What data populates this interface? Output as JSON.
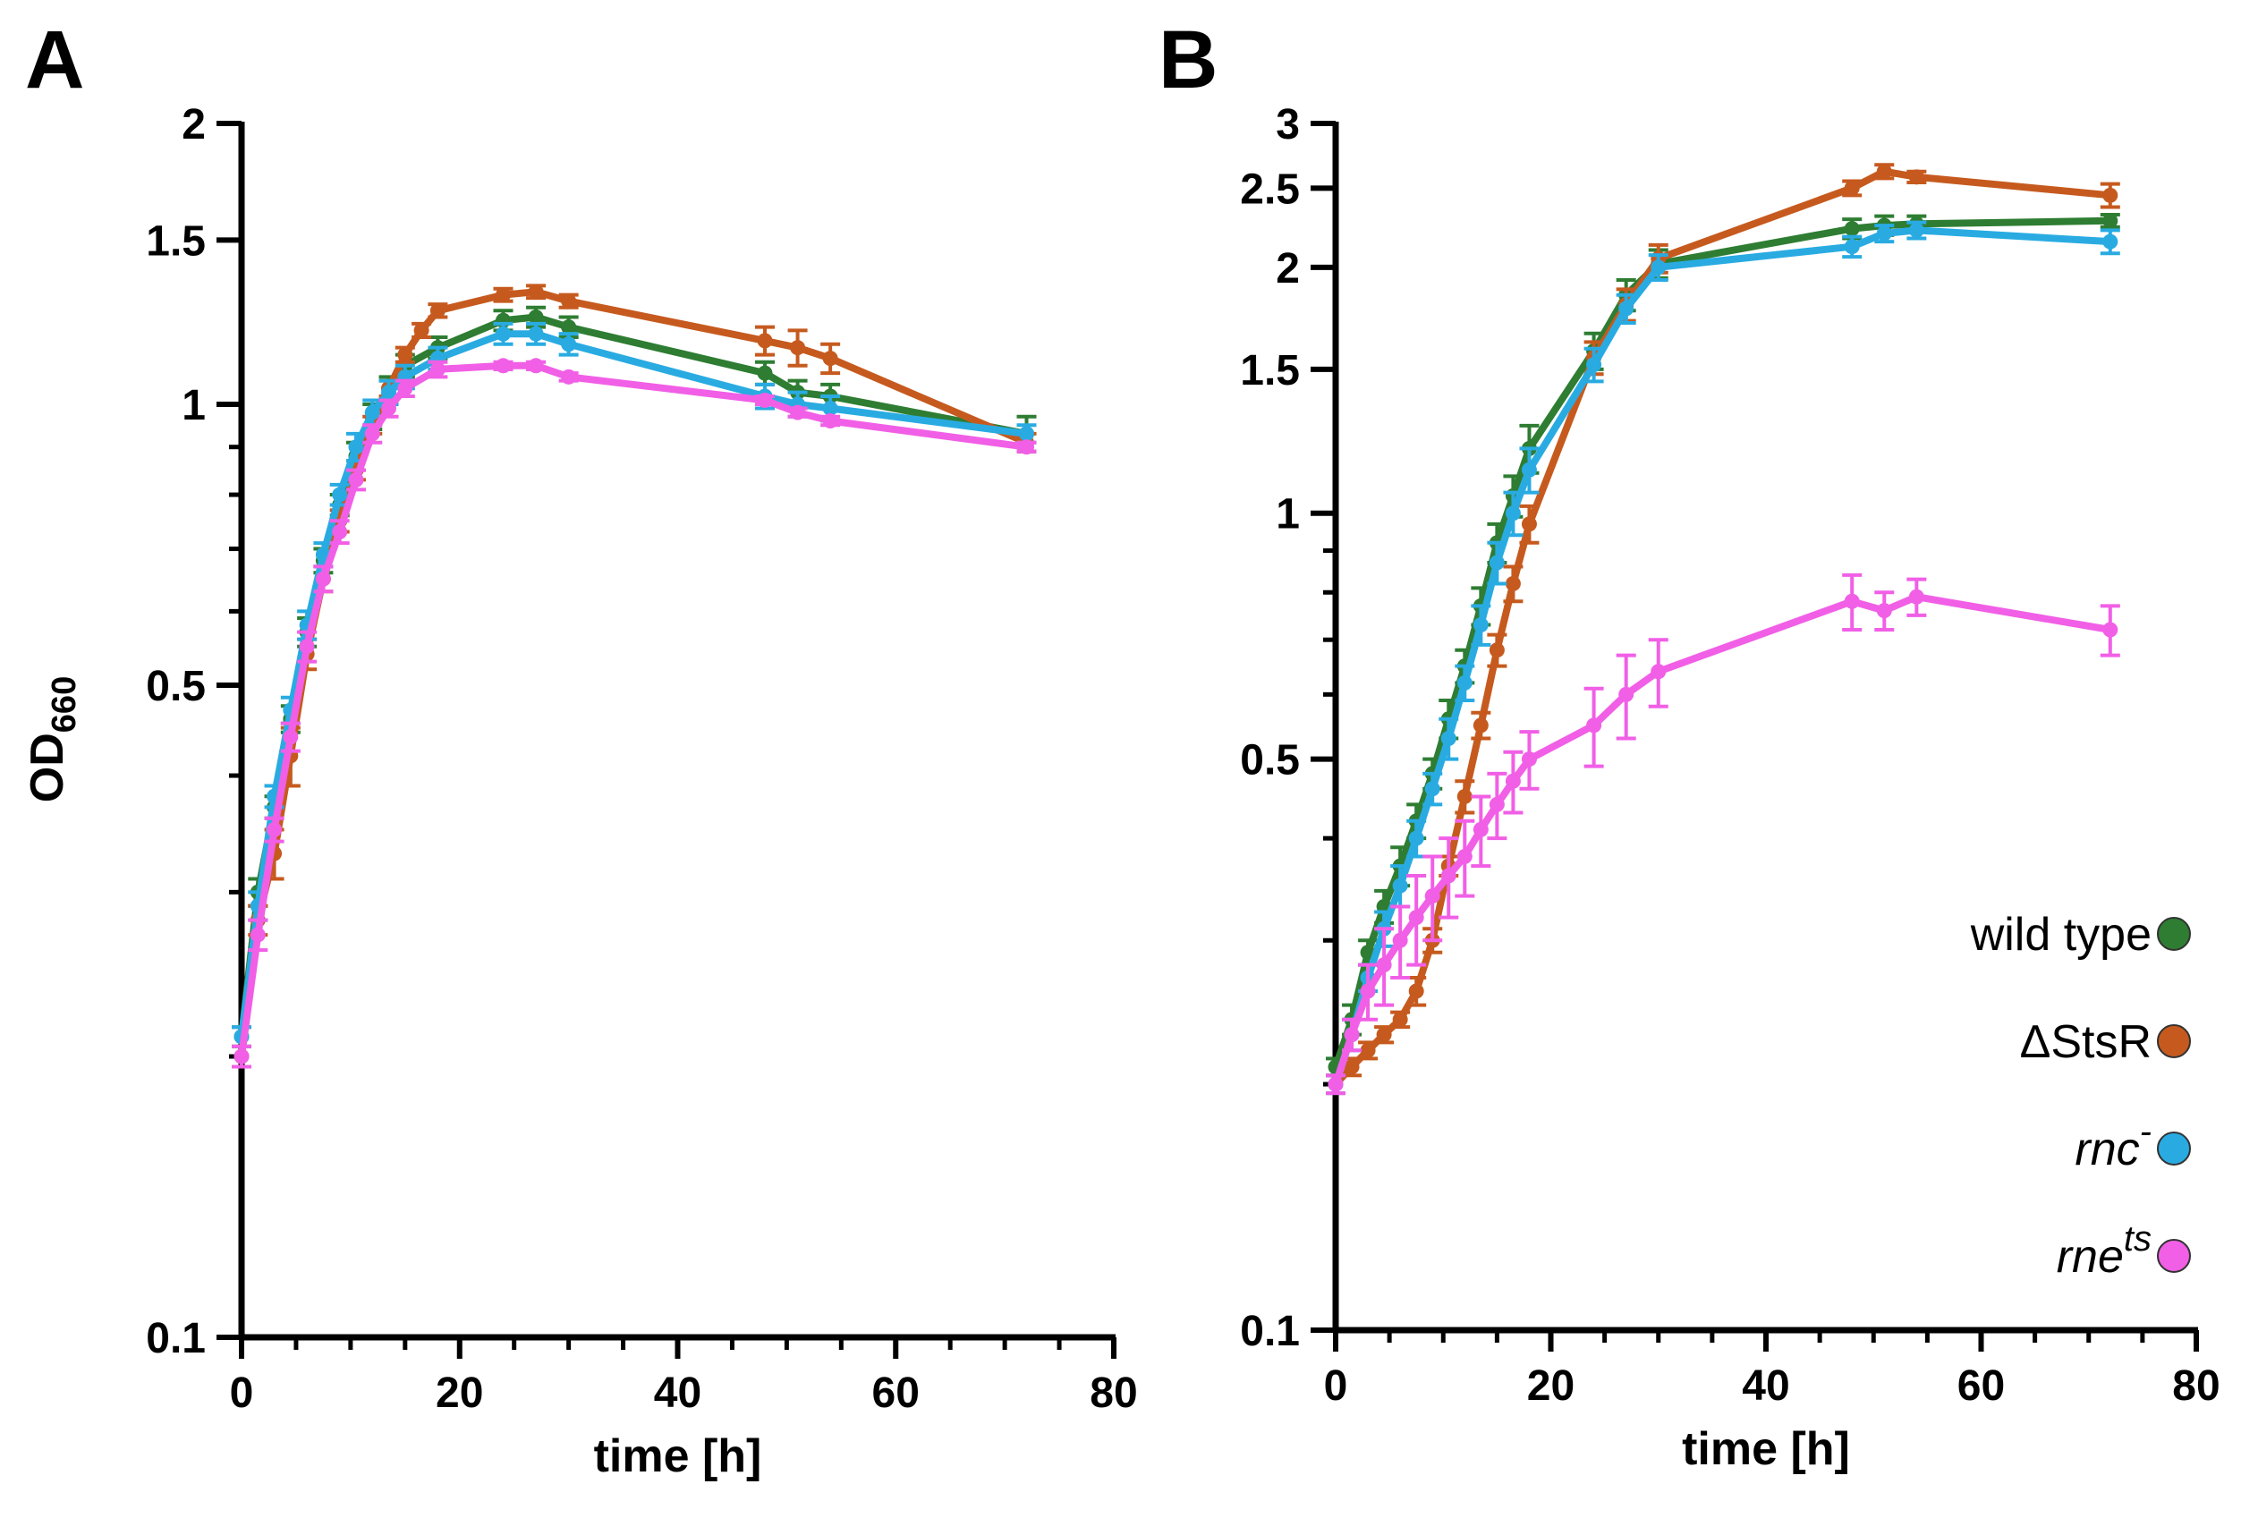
{
  "figure": {
    "panels": [
      "A",
      "B"
    ]
  },
  "chart_data": [
    {
      "panel": "A",
      "type": "line",
      "yscale": "log",
      "title": "",
      "xlabel": "time [h]",
      "ylabel": "OD",
      "ylabel_sub": "660",
      "xlim": [
        0,
        80
      ],
      "ylim": [
        0.1,
        2
      ],
      "xticks": [
        0,
        20,
        40,
        60,
        80
      ],
      "xtick_labels": [
        "0",
        "20",
        "40",
        "60",
        "80"
      ],
      "yticks": [
        0.1,
        0.5,
        1,
        1.5,
        2
      ],
      "ytick_labels": [
        "0.1",
        "0.5",
        "1",
        "1.5",
        "2"
      ],
      "series": [
        {
          "name": "wild type",
          "color": "#2e7d32",
          "x": [
            0,
            1.5,
            3,
            4.5,
            6,
            7.5,
            9,
            10.5,
            12,
            13.5,
            15,
            18,
            24,
            27,
            30,
            48,
            51,
            54,
            72
          ],
          "y": [
            0.21,
            0.3,
            0.37,
            0.46,
            0.57,
            0.68,
            0.78,
            0.88,
            0.97,
            1.04,
            1.1,
            1.15,
            1.23,
            1.24,
            1.21,
            1.08,
            1.03,
            1.02,
            0.93
          ],
          "err": [
            0.005,
            0.01,
            0.01,
            0.015,
            0.02,
            0.02,
            0.02,
            0.03,
            0.03,
            0.03,
            0.03,
            0.03,
            0.03,
            0.03,
            0.03,
            0.03,
            0.03,
            0.03,
            0.04
          ]
        },
        {
          "name": "ΔStsR",
          "color": "#c65a1e",
          "x": [
            0,
            1.5,
            3,
            4.5,
            6,
            7.5,
            9,
            10.5,
            12,
            13.5,
            15,
            16.5,
            18,
            24,
            27,
            30,
            48,
            51,
            54,
            72
          ],
          "y": [
            0.2,
            0.28,
            0.33,
            0.42,
            0.54,
            0.65,
            0.75,
            0.85,
            0.95,
            1.04,
            1.13,
            1.2,
            1.26,
            1.31,
            1.32,
            1.29,
            1.17,
            1.15,
            1.12,
            0.91
          ],
          "err": [
            0.005,
            0.01,
            0.02,
            0.03,
            0.02,
            0.02,
            0.02,
            0.02,
            0.02,
            0.02,
            0.02,
            0.02,
            0.02,
            0.02,
            0.02,
            0.02,
            0.04,
            0.05,
            0.04,
            0.02
          ]
        },
        {
          "name": "rnc-",
          "color": "#29abe2",
          "x": [
            0,
            1.5,
            3,
            4.5,
            6,
            7.5,
            9,
            10.5,
            12,
            13.5,
            15,
            18,
            24,
            27,
            30,
            48,
            51,
            54,
            72
          ],
          "y": [
            0.21,
            0.29,
            0.38,
            0.47,
            0.58,
            0.69,
            0.8,
            0.9,
            0.98,
            1.03,
            1.07,
            1.12,
            1.19,
            1.19,
            1.16,
            1.02,
            1.0,
            0.99,
            0.93
          ],
          "err": [
            0.005,
            0.01,
            0.01,
            0.015,
            0.02,
            0.02,
            0.02,
            0.03,
            0.03,
            0.03,
            0.03,
            0.03,
            0.03,
            0.03,
            0.03,
            0.03,
            0.03,
            0.03,
            0.02
          ]
        },
        {
          "name": "rne-ts",
          "color": "#f15fe6",
          "x": [
            0,
            1.5,
            3,
            4.5,
            6,
            7.5,
            9,
            10.5,
            12,
            13.5,
            15,
            18,
            24,
            27,
            30,
            48,
            51,
            54,
            72
          ],
          "y": [
            0.2,
            0.27,
            0.35,
            0.44,
            0.55,
            0.65,
            0.73,
            0.83,
            0.93,
            0.99,
            1.04,
            1.09,
            1.1,
            1.1,
            1.07,
            1.01,
            0.98,
            0.96,
            0.9
          ],
          "err": [
            0.005,
            0.01,
            0.01,
            0.015,
            0.02,
            0.02,
            0.02,
            0.02,
            0.02,
            0.02,
            0.02,
            0.02,
            0.01,
            0.01,
            0.01,
            0.01,
            0.01,
            0.01,
            0.01
          ]
        }
      ]
    },
    {
      "panel": "B",
      "type": "line",
      "yscale": "log",
      "title": "",
      "xlabel": "time [h]",
      "ylabel": "",
      "xlim": [
        0,
        80
      ],
      "ylim": [
        0.1,
        3
      ],
      "xticks": [
        0,
        20,
        40,
        60,
        80
      ],
      "xtick_labels": [
        "0",
        "20",
        "40",
        "60",
        "80"
      ],
      "yticks": [
        0.1,
        0.5,
        1,
        1.5,
        2,
        2.5,
        3
      ],
      "ytick_labels": [
        "0.1",
        "0.5",
        "1",
        "1.5",
        "2",
        "2.5",
        "3"
      ],
      "legend_position": "bottom-right",
      "series": [
        {
          "name": "wild type",
          "color": "#2e7d32",
          "x": [
            0,
            1.5,
            3,
            4.5,
            6,
            7.5,
            9,
            10.5,
            12,
            13.5,
            15,
            16.5,
            18,
            24,
            27,
            30,
            48,
            51,
            54,
            72
          ],
          "y": [
            0.21,
            0.24,
            0.29,
            0.33,
            0.37,
            0.42,
            0.48,
            0.56,
            0.65,
            0.77,
            0.92,
            1.05,
            1.2,
            1.58,
            1.85,
            2.02,
            2.23,
            2.25,
            2.26,
            2.28
          ],
          "err": [
            0.005,
            0.01,
            0.01,
            0.015,
            0.02,
            0.02,
            0.02,
            0.03,
            0.03,
            0.04,
            0.05,
            0.06,
            0.08,
            0.08,
            0.08,
            0.08,
            0.06,
            0.06,
            0.05,
            0.04
          ]
        },
        {
          "name": "ΔStsR",
          "color": "#c65a1e",
          "x": [
            0,
            1.5,
            3,
            4.5,
            6,
            7.5,
            9,
            10.5,
            12,
            13.5,
            15,
            16.5,
            18,
            24,
            27,
            30,
            48,
            51,
            54,
            72
          ],
          "y": [
            0.2,
            0.21,
            0.22,
            0.23,
            0.24,
            0.26,
            0.3,
            0.37,
            0.45,
            0.55,
            0.68,
            0.82,
            0.97,
            1.55,
            1.8,
            2.05,
            2.5,
            2.62,
            2.58,
            2.45
          ],
          "err": [
            0.005,
            0.005,
            0.005,
            0.005,
            0.005,
            0.01,
            0.01,
            0.01,
            0.02,
            0.02,
            0.03,
            0.04,
            0.05,
            0.07,
            0.08,
            0.08,
            0.05,
            0.05,
            0.04,
            0.08
          ]
        },
        {
          "name": "rnc-",
          "color": "#29abe2",
          "x": [
            0,
            1.5,
            3,
            4.5,
            6,
            7.5,
            9,
            10.5,
            12,
            13.5,
            15,
            16.5,
            18,
            24,
            27,
            30,
            48,
            51,
            54,
            72
          ],
          "y": [
            0.2,
            0.23,
            0.27,
            0.31,
            0.35,
            0.4,
            0.46,
            0.53,
            0.62,
            0.73,
            0.87,
            1.0,
            1.13,
            1.52,
            1.78,
            2.0,
            2.12,
            2.2,
            2.22,
            2.15
          ],
          "err": [
            0.005,
            0.01,
            0.01,
            0.015,
            0.02,
            0.02,
            0.02,
            0.03,
            0.03,
            0.04,
            0.05,
            0.06,
            0.07,
            0.07,
            0.07,
            0.07,
            0.06,
            0.05,
            0.05,
            0.07
          ]
        },
        {
          "name": "rne-ts",
          "color": "#f15fe6",
          "x": [
            0,
            1.5,
            3,
            4.5,
            6,
            7.5,
            9,
            10.5,
            12,
            13.5,
            15,
            16.5,
            18,
            24,
            27,
            30,
            48,
            51,
            54,
            72
          ],
          "y": [
            0.2,
            0.23,
            0.26,
            0.28,
            0.3,
            0.32,
            0.34,
            0.36,
            0.38,
            0.41,
            0.44,
            0.47,
            0.5,
            0.55,
            0.6,
            0.64,
            0.78,
            0.76,
            0.79,
            0.72
          ],
          "err": [
            0.005,
            0.01,
            0.02,
            0.03,
            0.03,
            0.04,
            0.04,
            0.04,
            0.04,
            0.04,
            0.04,
            0.04,
            0.04,
            0.06,
            0.07,
            0.06,
            0.06,
            0.04,
            0.04,
            0.05
          ]
        }
      ],
      "legend": [
        {
          "label": "wild type",
          "color": "#2e7d32",
          "style": "normal",
          "sup": ""
        },
        {
          "label": "ΔStsR",
          "color": "#c65a1e",
          "style": "normal",
          "sup": ""
        },
        {
          "label": "rnc",
          "color": "#29abe2",
          "style": "italic",
          "sup": "-"
        },
        {
          "label": "rne",
          "color": "#f15fe6",
          "style": "italic",
          "sup": "ts"
        }
      ]
    }
  ]
}
